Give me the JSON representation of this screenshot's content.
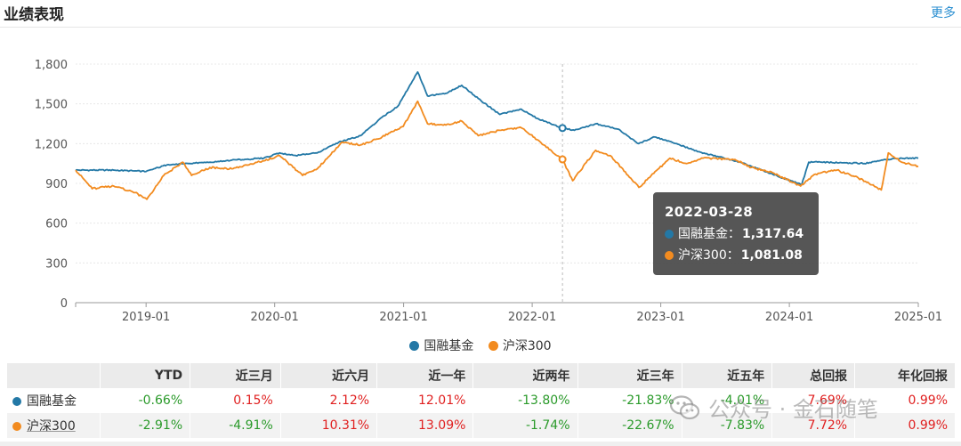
{
  "header": {
    "title": "业绩表现",
    "more": "更多"
  },
  "chart_data": {
    "type": "line",
    "ylim": [
      0,
      1800
    ],
    "yticks": [
      "0",
      "300",
      "600",
      "900",
      "1,200",
      "1,500",
      "1,800"
    ],
    "ytick_values": [
      0,
      300,
      600,
      900,
      1200,
      1500,
      1800
    ],
    "xlim": [
      "2018-06-15",
      "2025-01-01"
    ],
    "xticks": [
      "2019-01",
      "2020-01",
      "2021-01",
      "2022-01",
      "2023-01",
      "2024-01",
      "2025-01"
    ],
    "xtick_dates": [
      "2019-01-01",
      "2020-01-01",
      "2021-01-01",
      "2022-01-01",
      "2023-01-01",
      "2024-01-01",
      "2025-01-01"
    ],
    "grid": true,
    "legend": "bottom",
    "series": [
      {
        "name": "国融基金",
        "color": "#2378a6",
        "points": [
          [
            "2018-06-15",
            1000
          ],
          [
            "2018-10-01",
            1000
          ],
          [
            "2019-01-01",
            990
          ],
          [
            "2019-03-01",
            1040
          ],
          [
            "2019-05-01",
            1050
          ],
          [
            "2019-07-01",
            1060
          ],
          [
            "2019-09-01",
            1075
          ],
          [
            "2019-12-01",
            1090
          ],
          [
            "2020-01-15",
            1130
          ],
          [
            "2020-03-01",
            1110
          ],
          [
            "2020-05-01",
            1130
          ],
          [
            "2020-07-01",
            1210
          ],
          [
            "2020-09-01",
            1260
          ],
          [
            "2020-11-01",
            1400
          ],
          [
            "2020-12-15",
            1480
          ],
          [
            "2021-01-15",
            1620
          ],
          [
            "2021-02-10",
            1740
          ],
          [
            "2021-03-10",
            1560
          ],
          [
            "2021-05-01",
            1580
          ],
          [
            "2021-06-15",
            1640
          ],
          [
            "2021-08-01",
            1540
          ],
          [
            "2021-10-01",
            1420
          ],
          [
            "2021-12-01",
            1460
          ],
          [
            "2022-01-15",
            1390
          ],
          [
            "2022-03-28",
            1317.64
          ],
          [
            "2022-05-01",
            1300
          ],
          [
            "2022-07-01",
            1350
          ],
          [
            "2022-09-01",
            1310
          ],
          [
            "2022-10-30",
            1200
          ],
          [
            "2022-12-15",
            1250
          ],
          [
            "2023-02-15",
            1200
          ],
          [
            "2023-04-15",
            1140
          ],
          [
            "2023-06-15",
            1100
          ],
          [
            "2023-08-15",
            1060
          ],
          [
            "2023-10-15",
            1000
          ],
          [
            "2023-12-15",
            940
          ],
          [
            "2024-02-05",
            890
          ],
          [
            "2024-02-25",
            1060
          ],
          [
            "2024-04-01",
            1060
          ],
          [
            "2024-06-01",
            1055
          ],
          [
            "2024-08-01",
            1050
          ],
          [
            "2024-09-30",
            1080
          ],
          [
            "2024-11-15",
            1090
          ],
          [
            "2025-01-01",
            1090
          ]
        ]
      },
      {
        "name": "沪深300",
        "color": "#f28b1f",
        "points": [
          [
            "2018-06-15",
            1000
          ],
          [
            "2018-08-01",
            860
          ],
          [
            "2018-10-01",
            880
          ],
          [
            "2018-12-01",
            830
          ],
          [
            "2019-01-03",
            780
          ],
          [
            "2019-02-20",
            960
          ],
          [
            "2019-04-15",
            1060
          ],
          [
            "2019-05-10",
            960
          ],
          [
            "2019-07-01",
            1020
          ],
          [
            "2019-09-01",
            1010
          ],
          [
            "2019-12-01",
            1070
          ],
          [
            "2020-01-15",
            1110
          ],
          [
            "2020-03-20",
            960
          ],
          [
            "2020-05-01",
            1010
          ],
          [
            "2020-07-10",
            1210
          ],
          [
            "2020-09-01",
            1190
          ],
          [
            "2020-11-01",
            1250
          ],
          [
            "2020-12-31",
            1330
          ],
          [
            "2021-02-10",
            1520
          ],
          [
            "2021-03-10",
            1350
          ],
          [
            "2021-05-01",
            1340
          ],
          [
            "2021-06-15",
            1370
          ],
          [
            "2021-08-01",
            1260
          ],
          [
            "2021-10-01",
            1300
          ],
          [
            "2021-12-01",
            1320
          ],
          [
            "2022-01-15",
            1230
          ],
          [
            "2022-03-28",
            1081.08
          ],
          [
            "2022-04-26",
            920
          ],
          [
            "2022-06-30",
            1150
          ],
          [
            "2022-08-15",
            1100
          ],
          [
            "2022-10-31",
            870
          ],
          [
            "2023-01-27",
            1090
          ],
          [
            "2023-03-15",
            1050
          ],
          [
            "2023-05-01",
            1090
          ],
          [
            "2023-07-31",
            1080
          ],
          [
            "2023-09-15",
            1020
          ],
          [
            "2023-11-15",
            980
          ],
          [
            "2024-02-02",
            880
          ],
          [
            "2024-03-15",
            970
          ],
          [
            "2024-05-15",
            1000
          ],
          [
            "2024-07-15",
            940
          ],
          [
            "2024-09-18",
            850
          ],
          [
            "2024-10-08",
            1130
          ],
          [
            "2024-11-15",
            1060
          ],
          [
            "2025-01-01",
            1030
          ]
        ]
      }
    ],
    "crosshair_date": "2022-03-28"
  },
  "tooltip": {
    "date": "2022-03-28",
    "rows": [
      {
        "name": "国融基金：",
        "value": "1,317.64",
        "color": "#2378a6"
      },
      {
        "name": "沪深300：",
        "value": "1,081.08",
        "color": "#f28b1f"
      }
    ]
  },
  "legend": [
    {
      "label": "国融基金",
      "color": "#2378a6"
    },
    {
      "label": "沪深300",
      "color": "#f28b1f"
    }
  ],
  "table": {
    "headers": [
      "",
      "YTD",
      "近三月",
      "近六月",
      "近一年",
      "近两年",
      "近三年",
      "近五年",
      "总回报",
      "年化回报"
    ],
    "rows": [
      {
        "name": "国融基金",
        "color": "#2378a6",
        "cells": [
          {
            "text": "-0.66%",
            "sign": "neg"
          },
          {
            "text": "0.15%",
            "sign": "pos"
          },
          {
            "text": "2.12%",
            "sign": "pos"
          },
          {
            "text": "12.01%",
            "sign": "pos"
          },
          {
            "text": "-13.80%",
            "sign": "neg"
          },
          {
            "text": "-21.83%",
            "sign": "neg"
          },
          {
            "text": "-4.01%",
            "sign": "neg"
          },
          {
            "text": "7.69%",
            "sign": "pos"
          },
          {
            "text": "0.99%",
            "sign": "pos"
          }
        ]
      },
      {
        "name": "沪深300",
        "color": "#f28b1f",
        "cells": [
          {
            "text": "-2.91%",
            "sign": "neg"
          },
          {
            "text": "-4.91%",
            "sign": "neg"
          },
          {
            "text": "10.31%",
            "sign": "pos"
          },
          {
            "text": "13.09%",
            "sign": "pos"
          },
          {
            "text": "-1.74%",
            "sign": "neg"
          },
          {
            "text": "-22.67%",
            "sign": "neg"
          },
          {
            "text": "-7.83%",
            "sign": "neg"
          },
          {
            "text": "7.72%",
            "sign": "pos"
          },
          {
            "text": "0.99%",
            "sign": "pos"
          }
        ]
      }
    ]
  },
  "watermark": {
    "text": "公众号 · 金石随笔"
  }
}
